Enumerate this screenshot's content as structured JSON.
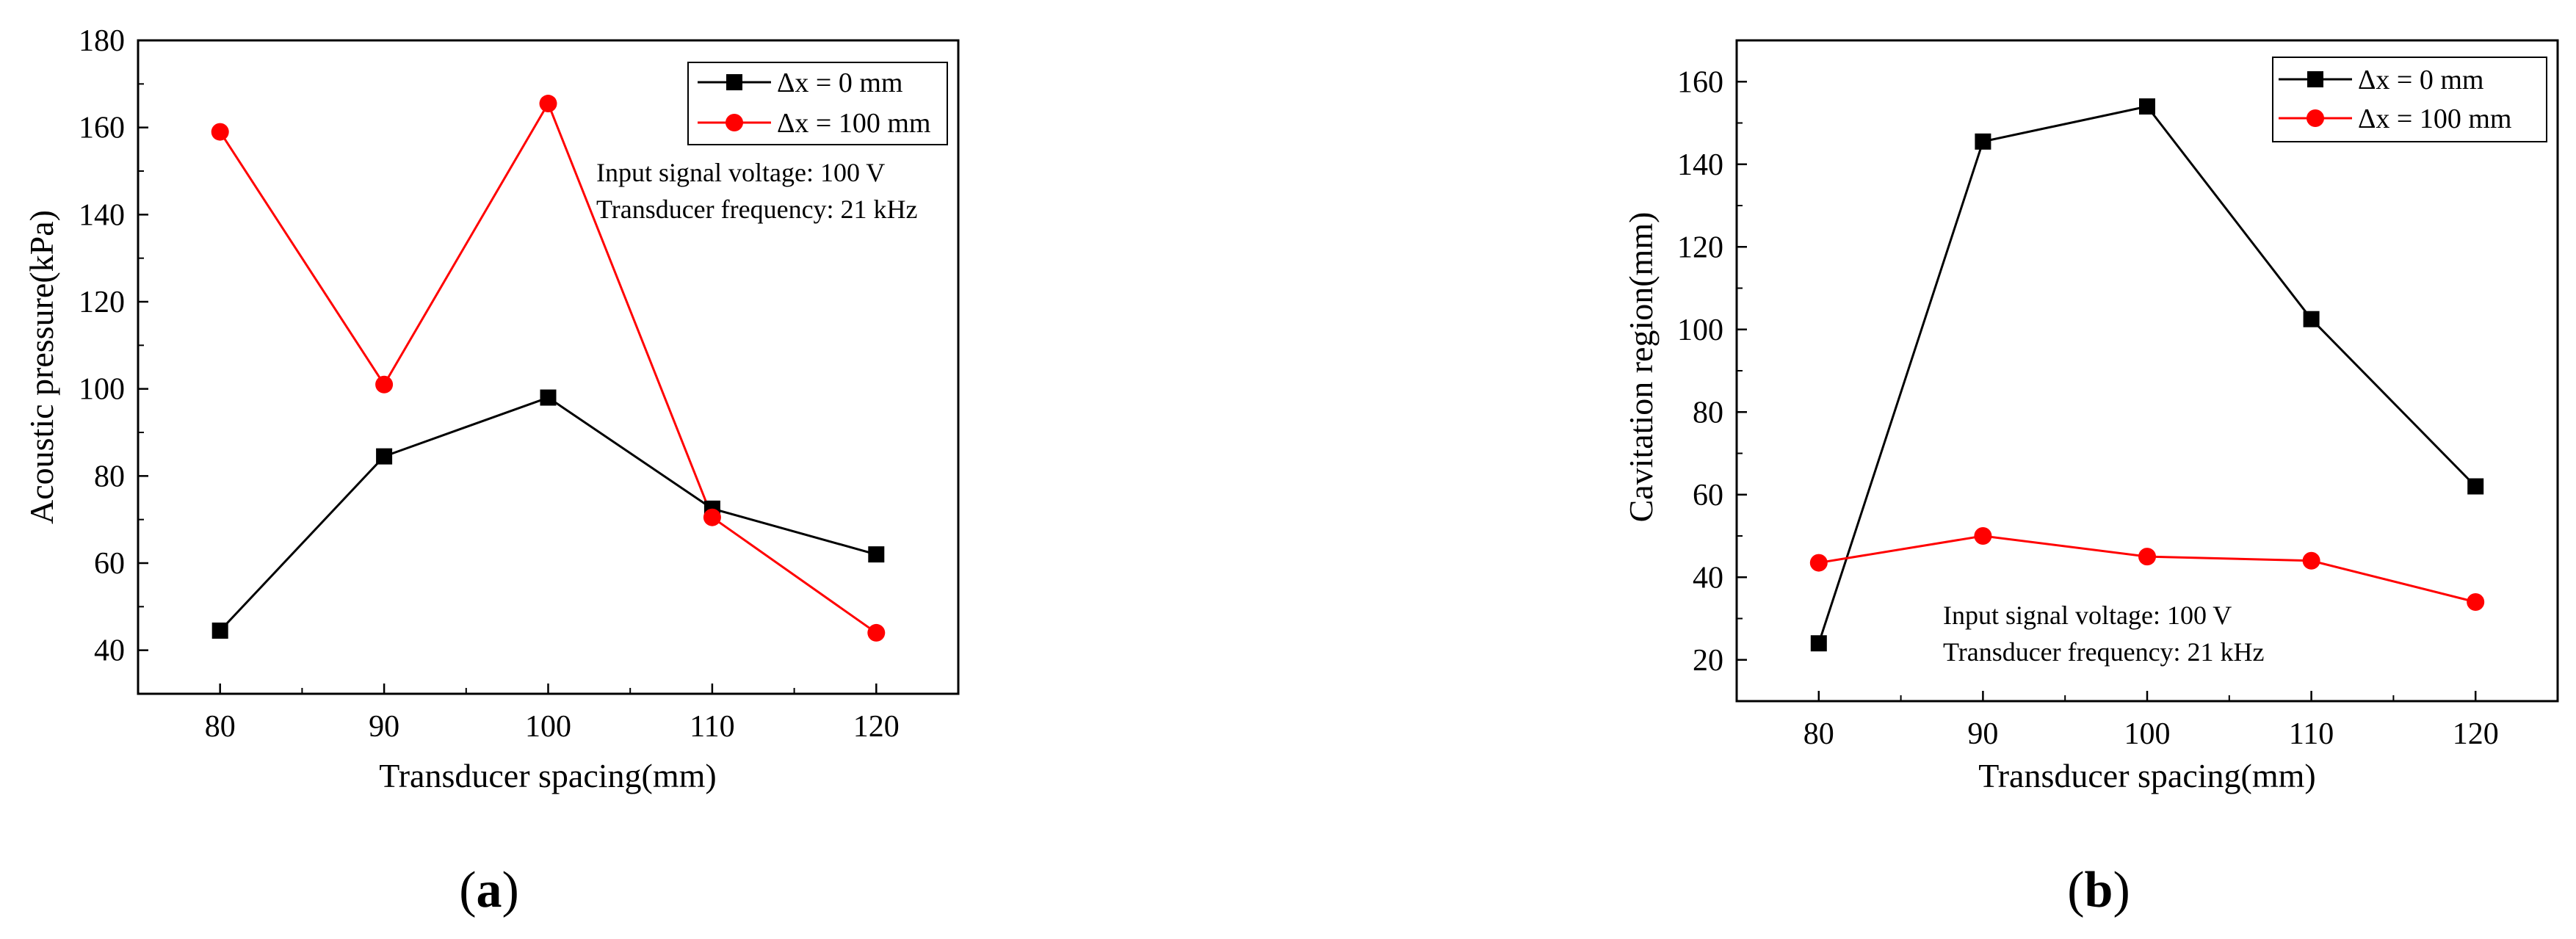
{
  "chart_data": [
    {
      "type": "line",
      "panel_label": "a",
      "x": [
        80,
        90,
        100,
        110,
        120
      ],
      "xlabel": "Transducer spacing(mm)",
      "ylabel": "Acoustic pressure(kPa)",
      "xlim": [
        75,
        125
      ],
      "ylim": [
        30,
        180
      ],
      "xticks": [
        "80",
        "90",
        "100",
        "110",
        "120"
      ],
      "yticks": [
        "40",
        "60",
        "80",
        "100",
        "120",
        "140",
        "160",
        "180"
      ],
      "series": [
        {
          "name": "Δx = 0 mm",
          "color": "#000000",
          "marker": "square",
          "values": [
            44.5,
            84.5,
            98,
            72.5,
            62
          ]
        },
        {
          "name": "Δx = 100 mm",
          "color": "#ff0000",
          "marker": "circle",
          "values": [
            159,
            101,
            165.5,
            70.5,
            44
          ]
        }
      ],
      "annotations": [
        "Input signal voltage: 100 V",
        "Transducer frequency: 21 kHz"
      ],
      "legend_position": "top-right",
      "grid": false
    },
    {
      "type": "line",
      "panel_label": "b",
      "x": [
        80,
        90,
        100,
        110,
        120
      ],
      "xlabel": "Transducer spacing(mm)",
      "ylabel": "Cavitation region(mm)",
      "xlim": [
        75,
        125
      ],
      "ylim": [
        10,
        170
      ],
      "xticks": [
        "80",
        "90",
        "100",
        "110",
        "120"
      ],
      "yticks": [
        "20",
        "40",
        "60",
        "80",
        "100",
        "120",
        "140",
        "160"
      ],
      "series": [
        {
          "name": "Δx = 0 mm",
          "color": "#000000",
          "marker": "square",
          "values": [
            24,
            145.5,
            154,
            102.5,
            62
          ]
        },
        {
          "name": "Δx = 100 mm",
          "color": "#ff0000",
          "marker": "circle",
          "values": [
            43.5,
            50,
            45,
            44,
            34
          ]
        }
      ],
      "annotations": [
        "Input signal voltage: 100 V",
        "Transducer frequency: 21 kHz"
      ],
      "legend_position": "top-right",
      "grid": false
    }
  ]
}
